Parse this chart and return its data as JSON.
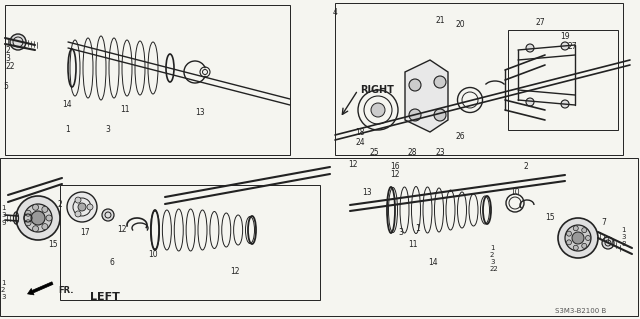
{
  "bg_color": "#f5f5f0",
  "lc": "#222222",
  "right_label": "RIGHT",
  "left_label": "LEFT",
  "fr_label": "FR.",
  "code_label": "S3M3-B2100 B",
  "figw": 6.4,
  "figh": 3.19,
  "dpi": 100
}
